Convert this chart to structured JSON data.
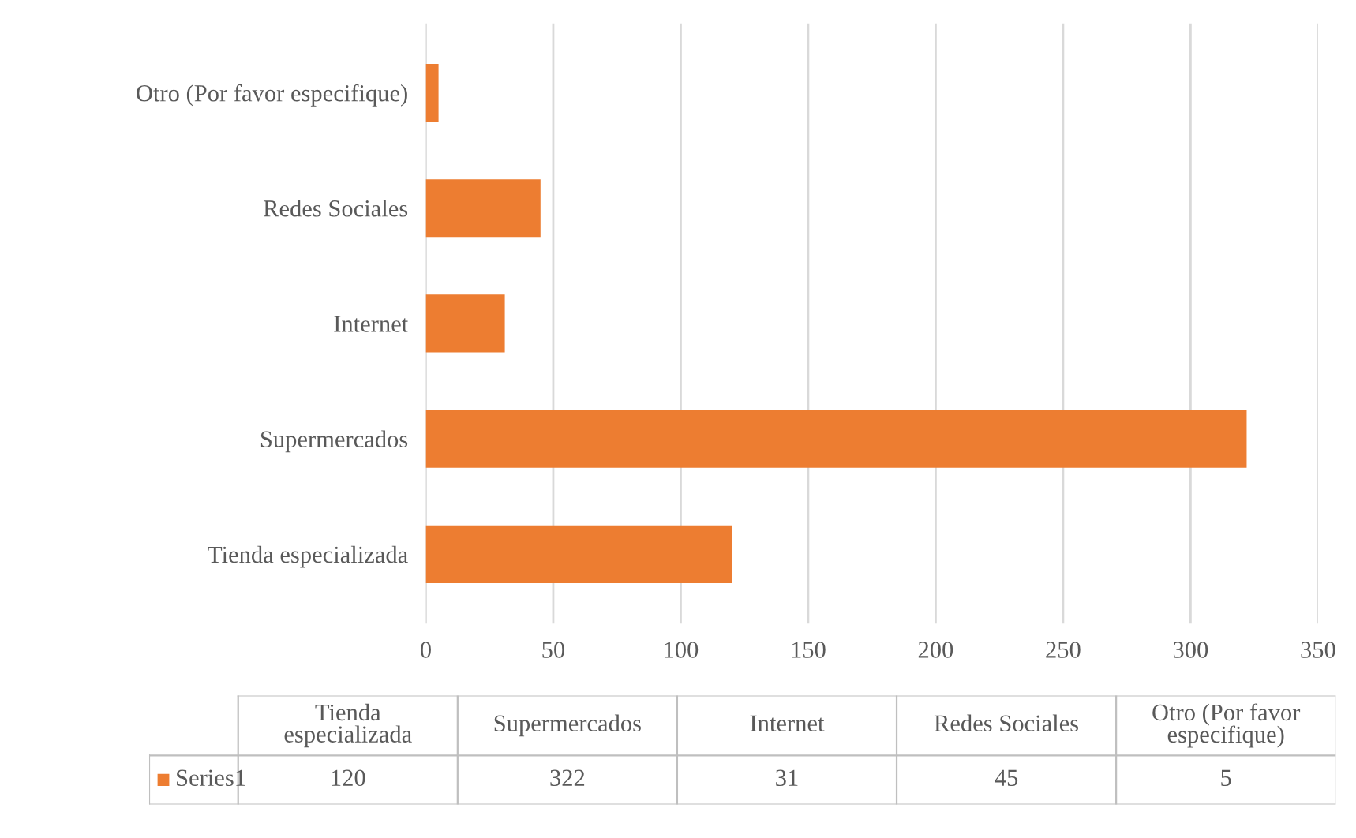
{
  "chart_data": [
    {
      "type": "bar",
      "orientation": "horizontal",
      "categories": [
        "Otro (Por favor especifique)",
        "Redes Sociales",
        "Internet",
        "Supermercados",
        "Tienda especializada"
      ],
      "series": [
        {
          "color": "#ed7d31",
          "values": [
            5,
            45,
            31,
            322,
            120
          ]
        }
      ],
      "xlim": [
        0,
        350
      ],
      "xticks": [
        0,
        50,
        100,
        150,
        200,
        250,
        300,
        350
      ],
      "grid": "x"
    },
    {
      "type": "other",
      "categories": [
        "Tienda especializada",
        "Supermercados",
        "Internet",
        "Redes Sociales",
        "Otro (Por favor especifique)"
      ],
      "series": [
        {
          "name": "Series1",
          "color": "#ed7d31",
          "values": [
            120,
            322,
            31,
            45,
            5
          ]
        }
      ],
      "legend": "left",
      "data_labels": true
    }
  ]
}
